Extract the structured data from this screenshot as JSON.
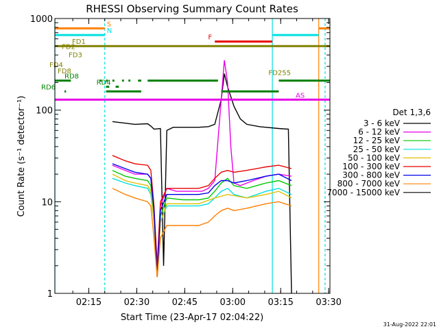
{
  "chart_data": {
    "type": "line",
    "title": "RHESSI Observing Summary Count Rates",
    "xlabel": "Start Time (23-Apr-17 02:04:22)",
    "ylabel": "Count Rate (s⁻¹ detector⁻¹)",
    "yscale": "log",
    "ylim": [
      1,
      1000
    ],
    "xlim_minutes_from_start": [
      0,
      86
    ],
    "y_ticks": [
      "1",
      "10",
      "100",
      "1000"
    ],
    "x_ticks": [
      {
        "label": "02:15",
        "t": 10.6
      },
      {
        "label": "02:30",
        "t": 25.6
      },
      {
        "label": "02:45",
        "t": 40.6
      },
      {
        "label": "03:00",
        "t": 55.6
      },
      {
        "label": "03:15",
        "t": 70.6
      },
      {
        "label": "03:30",
        "t": 85.6
      }
    ],
    "legend": {
      "title": "Det 1,3,6",
      "placement": "right",
      "entries": [
        {
          "label": "3 - 6 keV",
          "color": "#000000"
        },
        {
          "label": "6 - 12 keV",
          "color": "#e800e8"
        },
        {
          "label": "12 - 25 keV",
          "color": "#00c800"
        },
        {
          "label": "25 - 50 keV",
          "color": "#00e0e0"
        },
        {
          "label": "50 - 100 keV",
          "color": "#e0c000"
        },
        {
          "label": "100 - 300 keV",
          "color": "#e80000"
        },
        {
          "label": "300 - 800 keV",
          "color": "#0000e8"
        },
        {
          "label": "800 - 7000 keV",
          "color": "#ff8000"
        },
        {
          "label": "7000 - 15000 keV",
          "color": "#000000"
        }
      ]
    },
    "series": [
      {
        "name": "3 - 6 keV",
        "color": "#000000",
        "points": [
          [
            18,
            75
          ],
          [
            22,
            72
          ],
          [
            25,
            70
          ],
          [
            29,
            71
          ],
          [
            30,
            67
          ],
          [
            31,
            62
          ],
          [
            33,
            63
          ],
          [
            34,
            2
          ],
          [
            35,
            60
          ],
          [
            37,
            65
          ],
          [
            40,
            65
          ],
          [
            45,
            65
          ],
          [
            48,
            66
          ],
          [
            50,
            70
          ],
          [
            52,
            130
          ],
          [
            53,
            250
          ],
          [
            54,
            180
          ],
          [
            56,
            110
          ],
          [
            58,
            80
          ],
          [
            60,
            70
          ],
          [
            64,
            66
          ],
          [
            70,
            63
          ],
          [
            73,
            62
          ],
          [
            74,
            1
          ]
        ]
      },
      {
        "name": "6 - 12 keV",
        "color": "#e800e8",
        "points": [
          [
            18,
            25
          ],
          [
            22,
            22
          ],
          [
            25,
            20
          ],
          [
            29,
            20
          ],
          [
            30,
            18
          ],
          [
            31,
            8
          ],
          [
            32,
            2
          ],
          [
            33,
            9
          ],
          [
            35,
            14
          ],
          [
            38,
            13
          ],
          [
            42,
            13
          ],
          [
            46,
            13
          ],
          [
            48,
            14
          ],
          [
            50,
            17
          ],
          [
            52,
            130
          ],
          [
            53,
            350
          ],
          [
            54,
            200
          ],
          [
            55,
            40
          ],
          [
            56,
            16
          ],
          [
            58,
            15
          ],
          [
            62,
            17
          ],
          [
            66,
            19
          ],
          [
            70,
            20
          ],
          [
            74,
            19
          ]
        ]
      },
      {
        "name": "12 - 25 keV",
        "color": "#00c800",
        "points": [
          [
            18,
            22
          ],
          [
            22,
            19
          ],
          [
            25,
            18
          ],
          [
            29,
            17
          ],
          [
            30,
            15
          ],
          [
            31,
            7
          ],
          [
            32,
            1.5
          ],
          [
            33,
            7
          ],
          [
            35,
            11
          ],
          [
            40,
            10.5
          ],
          [
            45,
            10.5
          ],
          [
            48,
            11
          ],
          [
            50,
            13
          ],
          [
            52,
            16
          ],
          [
            54,
            18
          ],
          [
            56,
            15
          ],
          [
            60,
            14
          ],
          [
            66,
            16
          ],
          [
            70,
            17
          ],
          [
            74,
            15
          ]
        ]
      },
      {
        "name": "25 - 50 keV",
        "color": "#00e0e0",
        "points": [
          [
            18,
            18
          ],
          [
            22,
            16
          ],
          [
            25,
            15
          ],
          [
            29,
            14
          ],
          [
            30,
            12
          ],
          [
            31,
            6
          ],
          [
            32,
            1.5
          ],
          [
            33,
            6
          ],
          [
            35,
            9
          ],
          [
            40,
            9
          ],
          [
            45,
            9
          ],
          [
            48,
            9.5
          ],
          [
            50,
            11
          ],
          [
            52,
            13
          ],
          [
            54,
            14
          ],
          [
            56,
            12
          ],
          [
            60,
            11
          ],
          [
            66,
            13
          ],
          [
            70,
            14
          ],
          [
            74,
            12
          ]
        ]
      },
      {
        "name": "50 - 100 keV",
        "color": "#e0c000",
        "points": [
          [
            18,
            20
          ],
          [
            22,
            17
          ],
          [
            25,
            16
          ],
          [
            29,
            15
          ],
          [
            30,
            13
          ],
          [
            31,
            6
          ],
          [
            32,
            1.5
          ],
          [
            33,
            6
          ],
          [
            35,
            9.5
          ],
          [
            40,
            9.5
          ],
          [
            45,
            9.5
          ],
          [
            50,
            11
          ],
          [
            54,
            12
          ],
          [
            60,
            11
          ],
          [
            66,
            12
          ],
          [
            70,
            13
          ],
          [
            74,
            11
          ]
        ]
      },
      {
        "name": "100 - 300 keV",
        "color": "#e80000",
        "points": [
          [
            18,
            32
          ],
          [
            22,
            28
          ],
          [
            25,
            26
          ],
          [
            29,
            25
          ],
          [
            30,
            22
          ],
          [
            31,
            9
          ],
          [
            32,
            2
          ],
          [
            33,
            10
          ],
          [
            35,
            14
          ],
          [
            40,
            14
          ],
          [
            45,
            14
          ],
          [
            48,
            15
          ],
          [
            50,
            18
          ],
          [
            52,
            21
          ],
          [
            54,
            22
          ],
          [
            56,
            21
          ],
          [
            60,
            22
          ],
          [
            66,
            24
          ],
          [
            70,
            25
          ],
          [
            74,
            23
          ]
        ]
      },
      {
        "name": "300 - 800 keV",
        "color": "#0000e8",
        "points": [
          [
            18,
            26
          ],
          [
            22,
            23
          ],
          [
            25,
            21
          ],
          [
            29,
            20
          ],
          [
            30,
            18
          ],
          [
            31,
            8
          ],
          [
            32,
            1.5
          ],
          [
            33,
            8
          ],
          [
            35,
            12
          ],
          [
            40,
            12
          ],
          [
            45,
            12
          ],
          [
            48,
            12.5
          ],
          [
            50,
            15
          ],
          [
            52,
            17
          ],
          [
            54,
            17
          ],
          [
            56,
            16
          ],
          [
            60,
            17
          ],
          [
            66,
            19
          ],
          [
            70,
            20
          ],
          [
            74,
            17
          ]
        ]
      },
      {
        "name": "800 - 7000 keV",
        "color": "#ff8000",
        "points": [
          [
            18,
            14
          ],
          [
            22,
            12
          ],
          [
            25,
            11
          ],
          [
            29,
            10
          ],
          [
            30,
            9
          ],
          [
            31,
            4
          ],
          [
            32,
            1.5
          ],
          [
            33,
            4
          ],
          [
            35,
            5.5
          ],
          [
            40,
            5.5
          ],
          [
            45,
            5.5
          ],
          [
            48,
            6
          ],
          [
            50,
            7
          ],
          [
            52,
            8
          ],
          [
            54,
            8.5
          ],
          [
            56,
            8
          ],
          [
            60,
            8.5
          ],
          [
            66,
            9.5
          ],
          [
            70,
            10
          ],
          [
            74,
            9
          ]
        ]
      },
      {
        "name": "7000 - 15000 keV",
        "color": "#000000",
        "points": []
      }
    ],
    "status_bars": [
      {
        "label": "S",
        "color": "#ff8000",
        "y": 780,
        "segments": [
          [
            0,
            15.6
          ],
          [
            82.5,
            86
          ]
        ]
      },
      {
        "label": "N",
        "color": "#00e0e0",
        "y": 660,
        "segments": [
          [
            0,
            15.6
          ],
          [
            68,
            82.5
          ]
        ]
      },
      {
        "label": "F",
        "color": "#e80000",
        "y": 560,
        "segments": [
          [
            50,
            68
          ]
        ]
      },
      {
        "label": "FD1",
        "color": "#808000",
        "y": 500,
        "segments": [
          [
            0,
            86
          ]
        ]
      },
      {
        "label": "FD2",
        "color": "#808000",
        "y": 440,
        "segments": []
      },
      {
        "label": "FD3",
        "color": "#808000",
        "y": 360,
        "segments": []
      },
      {
        "label": "FD4",
        "color": "#808000",
        "y": 280,
        "segments": []
      },
      {
        "label": "FD8",
        "color": "#808000",
        "y": 240,
        "segments": []
      },
      {
        "label": "FD255",
        "color": "#808000",
        "y": 230,
        "segments": []
      },
      {
        "label": "RD8",
        "color": "#008000",
        "y": 210,
        "segments": [
          [
            0,
            5
          ],
          [
            14,
            14.6
          ],
          [
            16,
            16.6
          ],
          [
            18,
            18.6
          ],
          [
            21,
            21.6
          ],
          [
            23,
            23.6
          ],
          [
            26,
            27
          ],
          [
            29,
            51
          ],
          [
            70,
            86
          ]
        ]
      },
      {
        "label": "RD4",
        "color": "#008000",
        "y": 180,
        "segments": [
          [
            16,
            17
          ],
          [
            19,
            20
          ]
        ]
      },
      {
        "label": "RD6",
        "color": "#008000",
        "y": 160,
        "segments": [
          [
            3,
            3.5
          ],
          [
            16,
            27
          ],
          [
            52,
            70
          ]
        ]
      },
      {
        "label": "AS",
        "color": "#e800e8",
        "y": 130,
        "segments": [
          [
            0,
            86
          ]
        ]
      }
    ],
    "vertical_lines": [
      {
        "t": 0,
        "color": "#00e0e0",
        "style": "solid"
      },
      {
        "t": 15.6,
        "color": "#00e0e0",
        "style": "dashed"
      },
      {
        "t": 68,
        "color": "#00e0e0",
        "style": "solid"
      },
      {
        "t": 82.5,
        "color": "#ff8000",
        "style": "solid"
      },
      {
        "t": 84.5,
        "color": "#00e0e0",
        "style": "dashed"
      }
    ]
  },
  "footer": {
    "timestamp": "31-Aug-2022 22:01"
  }
}
